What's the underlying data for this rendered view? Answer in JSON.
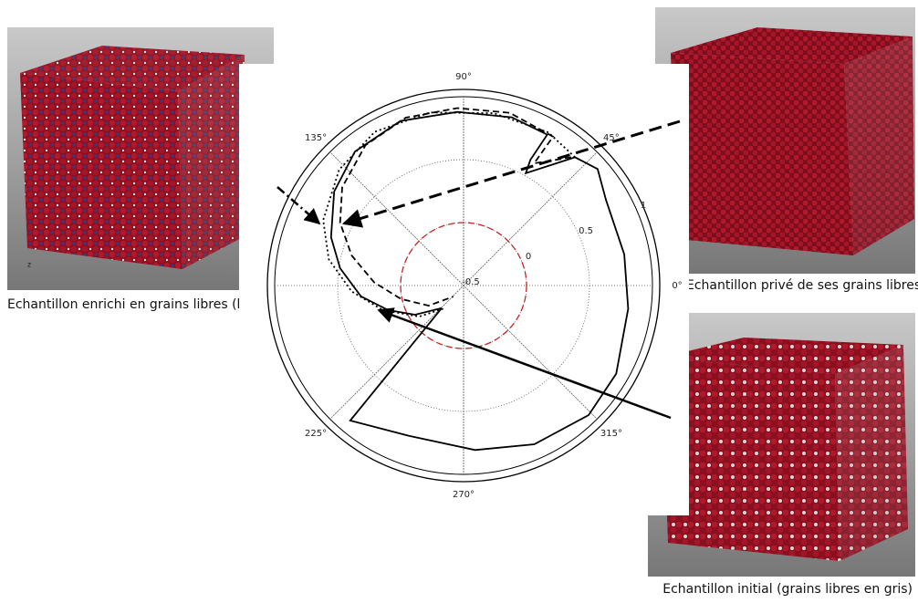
{
  "chart_data": {
    "type": "polar",
    "rlim": [
      -0.5,
      1
    ],
    "rticks": [
      -0.5,
      0,
      0.5,
      1
    ],
    "thetaticks": [
      {
        "value": 0,
        "label": "0°"
      },
      {
        "value": 45,
        "label": "45°"
      },
      {
        "value": 90,
        "label": "90°"
      },
      {
        "value": 135,
        "label": "135°"
      },
      {
        "value": 225,
        "label": "225°"
      },
      {
        "value": 270,
        "label": "270°"
      },
      {
        "value": 315,
        "label": "315°"
      }
    ],
    "grid": true,
    "reference_r": 0,
    "reference_color": "#cc2222",
    "series": [
      {
        "style": "solid",
        "color": "#000000",
        "theta": [
          226,
          230,
          250,
          274,
          294,
          314,
          330,
          352,
          371,
          391,
          401,
          409,
          421,
          422,
          421,
          434,
          452,
          471,
          489,
          504,
          520,
          532,
          546,
          558,
          571,
          586
        ],
        "r": [
          -0.25,
          0.9,
          0.77,
          0.81,
          0.88,
          0.93,
          0.9,
          0.82,
          0.8,
          0.82,
          0.91,
          0.85,
          0.52,
          0.63,
          0.87,
          0.89,
          0.88,
          0.9,
          0.87,
          0.77,
          0.62,
          0.49,
          0.32,
          0.13,
          -0.05,
          -0.25
        ]
      },
      {
        "style": "dashed",
        "color": "#000000",
        "theta": [
          50,
          60,
          59,
          75,
          92,
          109,
          125,
          141,
          153,
          165,
          178,
          192,
          210,
          227
        ],
        "r": [
          0.83,
          0.62,
          0.88,
          0.92,
          0.91,
          0.91,
          0.86,
          0.74,
          0.6,
          0.42,
          0.21,
          0.01,
          -0.18,
          -0.38
        ]
      },
      {
        "style": "dashdot",
        "color": "#000000",
        "theta": [
          49,
          61,
          80,
          101,
          120,
          137,
          155,
          169,
          183,
          197,
          215,
          231
        ],
        "r": [
          0.85,
          0.89,
          0.89,
          0.9,
          0.91,
          0.85,
          0.73,
          0.59,
          0.39,
          0.17,
          -0.07,
          -0.27
        ]
      }
    ]
  },
  "captions": {
    "left": "Echantillon enrichi en grains libres (bleus)",
    "top_right": "Echantillon privé de ses grains libres",
    "bottom_right": "Echantillon initial (grains libres en gris)"
  }
}
